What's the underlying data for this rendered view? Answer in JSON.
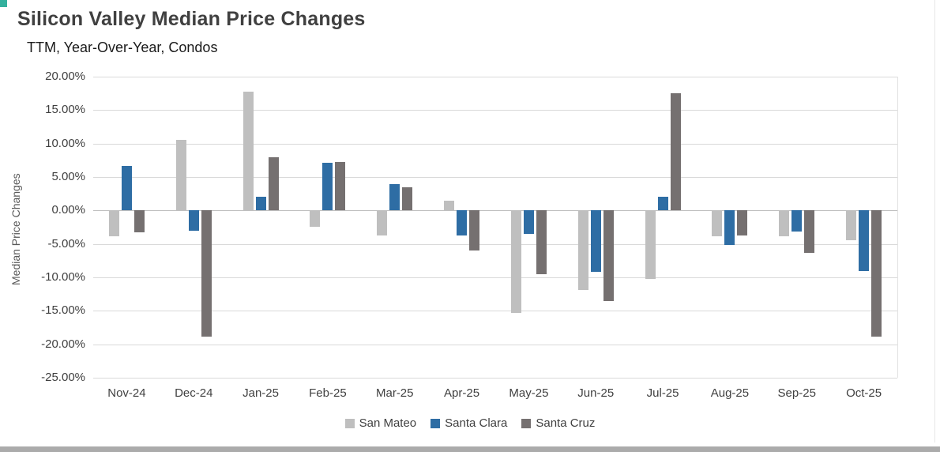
{
  "page": {
    "title": "Silicon Valley Median Price Changes",
    "subtitle": "TTM, Year-Over-Year, Condos"
  },
  "colors": {
    "accent_corner": "#35B19E",
    "title_text": "#404040",
    "axis_text": "#404040",
    "gridline": "#D9D9D9",
    "zero_axis_line": "#BFBFBF",
    "bottom_bar": "#ABABAB"
  },
  "chart_data": {
    "type": "bar",
    "title": "Silicon Valley Median Price Changes",
    "subtitle": "TTM, Year-Over-Year, Condos",
    "xlabel": "",
    "ylabel": "Median Price Changes",
    "ylim": [
      -25,
      20
    ],
    "ytick_step": 5,
    "yticks": [
      "20.00%",
      "15.00%",
      "10.00%",
      "5.00%",
      "0.00%",
      "-5.00%",
      "-10.00%",
      "-15.00%",
      "-20.00%",
      "-25.00%"
    ],
    "grid": true,
    "legend_position": "bottom",
    "categories": [
      "Nov-24",
      "Dec-24",
      "Jan-25",
      "Feb-25",
      "Mar-25",
      "Apr-25",
      "May-25",
      "Jun-25",
      "Jul-25",
      "Aug-25",
      "Sep-25",
      "Oct-25"
    ],
    "series": [
      {
        "name": "San Mateo",
        "color": "#BFBFBF",
        "values": [
          -3.8,
          10.6,
          17.7,
          -2.5,
          -3.7,
          1.5,
          -15.3,
          -11.9,
          -10.2,
          -3.8,
          -3.8,
          -4.5
        ]
      },
      {
        "name": "Santa Clara",
        "color": "#2E6DA4",
        "values": [
          6.7,
          -3.0,
          2.0,
          7.1,
          3.9,
          -3.7,
          -3.5,
          -9.2,
          2.0,
          -5.2,
          -3.1,
          -9.0
        ]
      },
      {
        "name": "Santa Cruz",
        "color": "#757070",
        "values": [
          -3.3,
          -18.9,
          8.0,
          7.2,
          3.5,
          -6.0,
          -9.5,
          -13.5,
          17.5,
          -3.7,
          -6.3,
          -18.8
        ]
      }
    ]
  }
}
